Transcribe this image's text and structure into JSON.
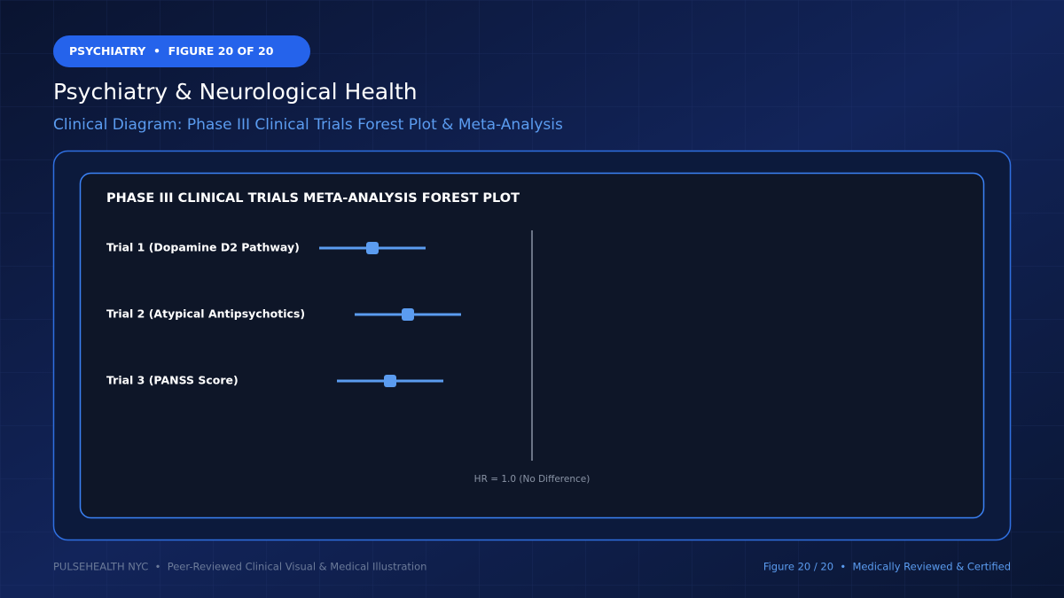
{
  "header": {
    "badge": "PSYCHIATRY  •  FIGURE 20 OF 20",
    "title": "Psychiatry & Neurological Health",
    "subtitle": "Clinical Diagram: Phase III Clinical Trials Forest Plot & Meta-Analysis"
  },
  "forest_plot": {
    "title": "PHASE III CLINICAL TRIALS META-ANALYSIS FOREST PLOT",
    "rows": [
      {
        "label": "Trial 1 (Dopamine D2 Pathway)"
      },
      {
        "label": "Trial 2 (Atypical Antipsychotics)"
      },
      {
        "label": "Trial 3 (PANSS Score)"
      }
    ],
    "reference_label": "HR = 1.0 (No Difference)"
  },
  "footer": {
    "left": "PULSEHEALTH NYC  •  Peer-Reviewed Clinical Visual & Medical Illustration",
    "right": "Figure 20 / 20  •  Medically Reviewed & Certified"
  }
}
